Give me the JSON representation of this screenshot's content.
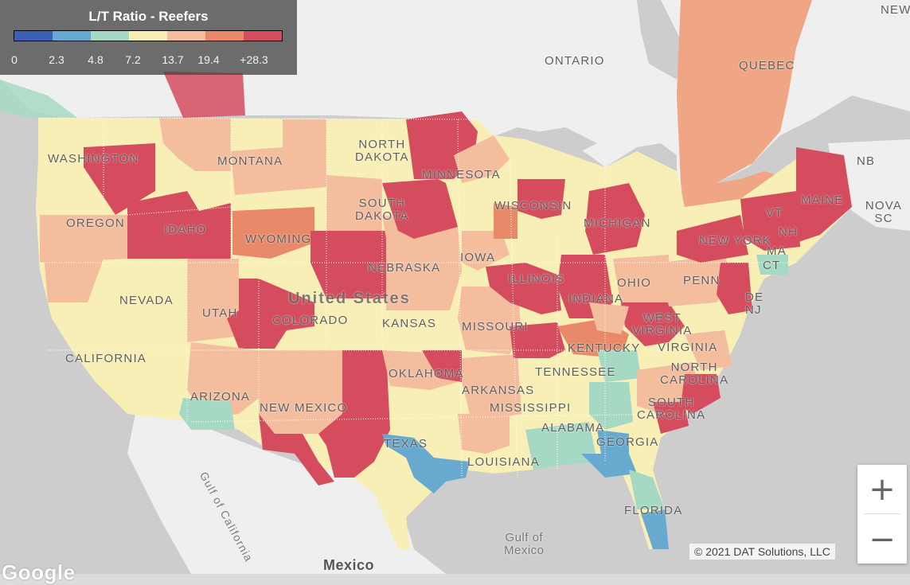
{
  "legend": {
    "title": "L/T Ratio - Reefers",
    "ticks": [
      "0",
      "2.3",
      "4.8",
      "7.2",
      "13.7",
      "19.4",
      "+28.3"
    ],
    "colors": [
      "#3b5fb3",
      "#67a9cf",
      "#a6d9c3",
      "#f7efb5",
      "#f3bd9e",
      "#e88a6a",
      "#d44c5e"
    ]
  },
  "labels": {
    "washington": "WASHINGTON",
    "oregon": "OREGON",
    "idaho": "IDAHO",
    "montana": "MONTANA",
    "wyoming": "WYOMING",
    "nevada": "NEVADA",
    "utah": "UTAH",
    "california": "CALIFORNIA",
    "arizona": "ARIZONA",
    "colorado": "COLORADO",
    "new_mexico": "NEW MEXICO",
    "north_dakota": "NORTH\nDAKOTA",
    "south_dakota": "SOUTH\nDAKOTA",
    "nebraska": "NEBRASKA",
    "kansas": "KANSAS",
    "oklahoma": "OKLAHOMA",
    "texas": "TEXAS",
    "minnesota": "MINNESOTA",
    "iowa": "IOWA",
    "missouri": "MISSOURI",
    "arkansas": "ARKANSAS",
    "louisiana": "LOUISIANA",
    "mississippi": "MISSISSIPPI",
    "alabama": "ALABAMA",
    "georgia": "GEORGIA",
    "florida": "FLORIDA",
    "tennessee": "TENNESSEE",
    "kentucky": "KENTUCKY",
    "illinois": "ILLINOIS",
    "indiana": "INDIANA",
    "ohio": "OHIO",
    "michigan": "MICHIGAN",
    "wisconsin": "WISCONSIN",
    "west_virginia": "WEST\nVIRGINIA",
    "virginia": "VIRGINIA",
    "north_carolina": "NORTH\nCAROLINA",
    "south_carolina": "SOUTH\nCAROLINA",
    "penn": "PENN",
    "new_york": "NEW YORK",
    "maine": "MAINE",
    "vt": "VT",
    "nh": "NH",
    "ma": "MA",
    "ct": "CT",
    "denj": "DE\nNJ",
    "ontario": "ONTARIO",
    "quebec": "QUEBEC",
    "nb": "NB",
    "nova_scotia": "NOVA SC",
    "new": "NEW",
    "united_states": "United States",
    "mexico": "Mexico",
    "gulf_of_mexico": "Gulf of\nMexico",
    "gulf_of_california": "Gulf of California"
  },
  "controls": {
    "zoom_in": "+",
    "zoom_out": "−"
  },
  "attribution": "© 2021 DAT Solutions, LLC",
  "google": "Google"
}
